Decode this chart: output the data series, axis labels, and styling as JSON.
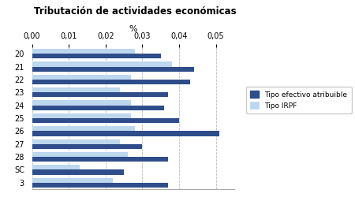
{
  "title": "Tributación de actividades económicas",
  "xlabel": "%",
  "categories": [
    "20",
    "21",
    "22",
    "23",
    "24",
    "25",
    "26",
    "27",
    "28",
    "SC",
    "3"
  ],
  "tipo_efectivo": [
    0.035,
    0.044,
    0.043,
    0.037,
    0.036,
    0.04,
    0.051,
    0.03,
    0.037,
    0.025,
    0.037
  ],
  "tipo_irpf": [
    0.028,
    0.038,
    0.027,
    0.024,
    0.027,
    0.027,
    0.028,
    0.024,
    0.026,
    0.013,
    0.022
  ],
  "xlim": [
    0,
    0.055
  ],
  "xticks": [
    0.0,
    0.01,
    0.02,
    0.03,
    0.04,
    0.05
  ],
  "xtick_labels": [
    "0,00",
    "0,01",
    "0,02",
    "0,03",
    "0,04",
    "0,05"
  ],
  "color_efectivo": "#2E4D8A",
  "color_irpf": "#BDD7EE",
  "legend_labels": [
    "Tipo efectivo atribuible",
    "Tipo IRPF"
  ],
  "bg_color": "#FFFFFF",
  "grid_color": "#BBBBBB"
}
